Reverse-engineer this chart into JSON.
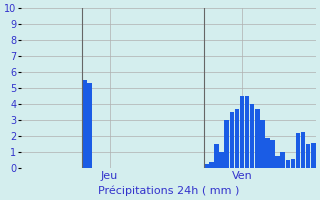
{
  "title": "Précipitations 24h ( mm )",
  "ylim": [
    0,
    10
  ],
  "yticks": [
    0,
    1,
    2,
    3,
    4,
    5,
    6,
    7,
    8,
    9,
    10
  ],
  "background_color": "#d4eeee",
  "bar_color": "#1a5ce5",
  "grid_color": "#b0b0b0",
  "label_color": "#3333cc",
  "day_labels": [
    "Jeu",
    "Ven"
  ],
  "jeu_bar_index": 12,
  "ven_bar_index": 36,
  "bar_values": [
    0,
    0,
    0,
    0,
    0,
    0,
    0,
    0,
    0,
    0,
    0,
    0,
    5.5,
    5.3,
    0,
    0,
    0,
    0,
    0,
    0,
    0,
    0,
    0,
    0,
    0,
    0,
    0,
    0,
    0,
    0,
    0,
    0,
    0,
    0,
    0,
    0,
    0.3,
    0.4,
    1.5,
    1.0,
    3.0,
    3.5,
    3.7,
    4.5,
    4.5,
    4.0,
    3.7,
    3.0,
    1.9,
    1.8,
    0.8,
    1.0,
    0.5,
    0.6,
    2.2,
    2.3,
    1.5,
    1.6
  ]
}
